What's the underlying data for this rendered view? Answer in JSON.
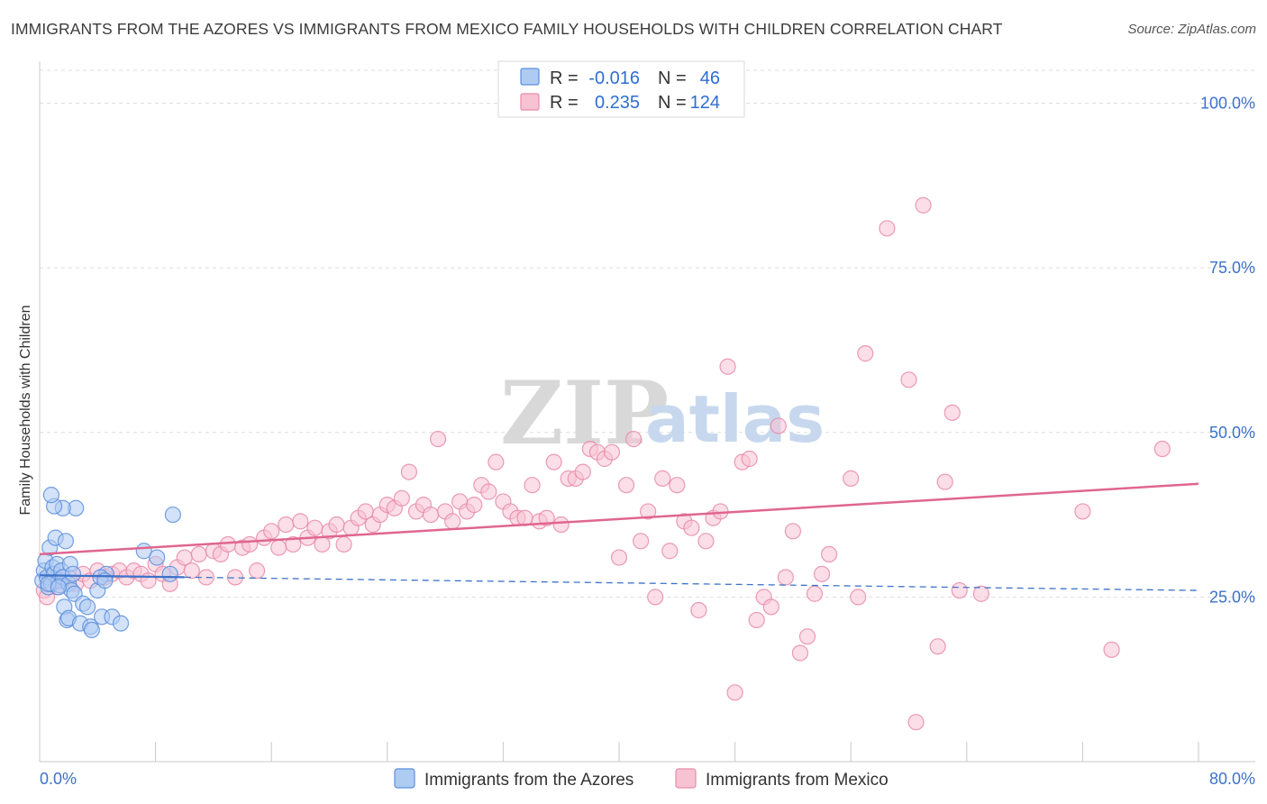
{
  "title": "IMMIGRANTS FROM THE AZORES VS IMMIGRANTS FROM MEXICO FAMILY HOUSEHOLDS WITH CHILDREN CORRELATION CHART",
  "source": "Source: ZipAtlas.com",
  "watermark": {
    "zip": "ZIP",
    "atlas": "atlas"
  },
  "colors": {
    "azores_fill": "#aecbf2",
    "azores_stroke": "#5b8fdc",
    "azores_line": "#3d72c9",
    "mexico_fill": "#f7c3d3",
    "mexico_stroke": "#e88aa9",
    "mexico_line": "#e0668f",
    "tick_label": "#3d72c9",
    "grid": "#dddddd"
  },
  "legend": {
    "rows": [
      {
        "r_label": "R =",
        "r_value": "-0.016",
        "n_label": "N =",
        "n_value": "46",
        "series": "azores"
      },
      {
        "r_label": "R =",
        "r_value": "0.235",
        "n_label": "N =",
        "n_value": "124",
        "series": "mexico"
      }
    ]
  },
  "chart_data": {
    "type": "scatter",
    "title": "IMMIGRANTS FROM THE AZORES VS IMMIGRANTS FROM MEXICO FAMILY HOUSEHOLDS WITH CHILDREN CORRELATION CHART",
    "xlabel": "",
    "ylabel": "Family Households with Children",
    "xlim": [
      0,
      80
    ],
    "ylim": [
      0,
      105
    ],
    "x_tick_labels": [
      {
        "value": 0,
        "label": "0.0%"
      },
      {
        "value": 80,
        "label": "80.0%"
      }
    ],
    "y_tick_labels": [
      {
        "value": 25,
        "label": "25.0%"
      },
      {
        "value": 50,
        "label": "50.0%"
      },
      {
        "value": 75,
        "label": "75.0%"
      },
      {
        "value": 100,
        "label": "100.0%"
      }
    ],
    "x_minor_ticks": [
      0,
      8,
      16,
      24,
      32,
      40,
      48,
      56,
      64,
      72,
      80
    ],
    "grid": true,
    "series": [
      {
        "name": "Immigrants from the Azores",
        "key": "azores",
        "trend": {
          "x0": 0,
          "y0": 28.3,
          "x1": 80,
          "y1": 26.0,
          "solid_until_x": 10
        },
        "points": [
          [
            0.2,
            27.5
          ],
          [
            0.3,
            29
          ],
          [
            0.4,
            30.5
          ],
          [
            0.5,
            28
          ],
          [
            0.6,
            26.5
          ],
          [
            0.7,
            32.5
          ],
          [
            0.8,
            27
          ],
          [
            0.9,
            29.5
          ],
          [
            1.0,
            28.5
          ],
          [
            1.1,
            34
          ],
          [
            1.2,
            30
          ],
          [
            1.3,
            27.5
          ],
          [
            1.4,
            26.8
          ],
          [
            1.5,
            29
          ],
          [
            1.6,
            28
          ],
          [
            1.7,
            23.5
          ],
          [
            1.8,
            33.5
          ],
          [
            1.9,
            21.5
          ],
          [
            2.0,
            27
          ],
          [
            2.1,
            30
          ],
          [
            2.2,
            26
          ],
          [
            2.3,
            28.5
          ],
          [
            2.4,
            25.5
          ],
          [
            2.5,
            38.5
          ],
          [
            1.6,
            38.5
          ],
          [
            1.0,
            38.8
          ],
          [
            0.8,
            40.5
          ],
          [
            2.0,
            21.8
          ],
          [
            2.8,
            21
          ],
          [
            3.0,
            24
          ],
          [
            3.3,
            23.5
          ],
          [
            3.5,
            20.5
          ],
          [
            3.6,
            20
          ],
          [
            4.0,
            26
          ],
          [
            4.3,
            22
          ],
          [
            4.6,
            28.5
          ],
          [
            5.0,
            22
          ],
          [
            5.6,
            21
          ],
          [
            4.2,
            28
          ],
          [
            4.5,
            27.5
          ],
          [
            7.2,
            32
          ],
          [
            8.1,
            31
          ],
          [
            9.0,
            28.5
          ],
          [
            9.2,
            37.5
          ],
          [
            0.6,
            27
          ],
          [
            1.3,
            26.5
          ]
        ]
      },
      {
        "name": "Immigrants from Mexico",
        "key": "mexico",
        "trend": {
          "x0": 0,
          "y0": 31.5,
          "x1": 80,
          "y1": 42.2
        },
        "points": [
          [
            0.3,
            26
          ],
          [
            0.5,
            25
          ],
          [
            0.8,
            28
          ],
          [
            1.2,
            26.5
          ],
          [
            1.5,
            27.5
          ],
          [
            2.0,
            28
          ],
          [
            2.5,
            27
          ],
          [
            3.0,
            28.5
          ],
          [
            3.5,
            27.5
          ],
          [
            4.0,
            29
          ],
          [
            4.5,
            28
          ],
          [
            5.0,
            28.5
          ],
          [
            5.5,
            29
          ],
          [
            6.0,
            28
          ],
          [
            6.5,
            29
          ],
          [
            7.0,
            28.5
          ],
          [
            7.5,
            27.5
          ],
          [
            8.0,
            30
          ],
          [
            8.5,
            28.5
          ],
          [
            9.0,
            27
          ],
          [
            9.5,
            29.5
          ],
          [
            10.0,
            31
          ],
          [
            10.5,
            29
          ],
          [
            11.0,
            31.5
          ],
          [
            11.5,
            28
          ],
          [
            12.0,
            32
          ],
          [
            12.5,
            31.5
          ],
          [
            13.0,
            33
          ],
          [
            13.5,
            28
          ],
          [
            14.0,
            32.5
          ],
          [
            14.5,
            33
          ],
          [
            15.0,
            29
          ],
          [
            15.5,
            34
          ],
          [
            16.0,
            35
          ],
          [
            16.5,
            32.5
          ],
          [
            17.0,
            36
          ],
          [
            17.5,
            33
          ],
          [
            18.0,
            36.5
          ],
          [
            18.5,
            34
          ],
          [
            19.0,
            35.5
          ],
          [
            19.5,
            33
          ],
          [
            20.0,
            35
          ],
          [
            20.5,
            36
          ],
          [
            21.0,
            33
          ],
          [
            21.5,
            35.5
          ],
          [
            22.0,
            37
          ],
          [
            22.5,
            38
          ],
          [
            23.0,
            36
          ],
          [
            23.5,
            37.5
          ],
          [
            24.0,
            39
          ],
          [
            24.5,
            38.5
          ],
          [
            25.0,
            40
          ],
          [
            25.5,
            44
          ],
          [
            26.0,
            38
          ],
          [
            26.5,
            39
          ],
          [
            27.0,
            37.5
          ],
          [
            27.5,
            49
          ],
          [
            28.0,
            38
          ],
          [
            28.5,
            36.5
          ],
          [
            29.0,
            39.5
          ],
          [
            29.5,
            38
          ],
          [
            30.0,
            39
          ],
          [
            30.5,
            42
          ],
          [
            31.0,
            41
          ],
          [
            31.5,
            45.5
          ],
          [
            32.0,
            39.5
          ],
          [
            32.5,
            38
          ],
          [
            33.0,
            37
          ],
          [
            33.5,
            37
          ],
          [
            34.0,
            42
          ],
          [
            34.5,
            36.5
          ],
          [
            35.0,
            37
          ],
          [
            35.5,
            45.5
          ],
          [
            36.0,
            36
          ],
          [
            36.5,
            43
          ],
          [
            37.0,
            43
          ],
          [
            37.5,
            44
          ],
          [
            38.0,
            47.5
          ],
          [
            38.5,
            47
          ],
          [
            39.0,
            46
          ],
          [
            39.5,
            47
          ],
          [
            40.0,
            31
          ],
          [
            40.5,
            42
          ],
          [
            41.0,
            49
          ],
          [
            41.5,
            33.5
          ],
          [
            42.0,
            38
          ],
          [
            42.5,
            25
          ],
          [
            43.0,
            43
          ],
          [
            43.5,
            32
          ],
          [
            44.0,
            42
          ],
          [
            44.5,
            36.5
          ],
          [
            45.0,
            35.5
          ],
          [
            45.5,
            23
          ],
          [
            46.0,
            33.5
          ],
          [
            46.5,
            37
          ],
          [
            47.0,
            38
          ],
          [
            47.5,
            60
          ],
          [
            48.0,
            10.5
          ],
          [
            48.5,
            45.5
          ],
          [
            49.0,
            46
          ],
          [
            49.5,
            21.5
          ],
          [
            50.0,
            25
          ],
          [
            50.5,
            23.5
          ],
          [
            51.0,
            51
          ],
          [
            51.5,
            28
          ],
          [
            52.0,
            35
          ],
          [
            52.5,
            16.5
          ],
          [
            53.0,
            19
          ],
          [
            53.5,
            25.5
          ],
          [
            54.0,
            28.5
          ],
          [
            54.5,
            31.5
          ],
          [
            56.0,
            43
          ],
          [
            56.5,
            25
          ],
          [
            57.0,
            62
          ],
          [
            58.5,
            81
          ],
          [
            60.0,
            58
          ],
          [
            60.5,
            6
          ],
          [
            61.0,
            84.5
          ],
          [
            62.0,
            17.5
          ],
          [
            62.5,
            42.5
          ],
          [
            63.0,
            53
          ],
          [
            63.5,
            26
          ],
          [
            65.0,
            25.5
          ],
          [
            72.0,
            38
          ],
          [
            74.0,
            17
          ],
          [
            77.5,
            47.5
          ]
        ]
      }
    ]
  },
  "bottom_legend": [
    {
      "label": "Immigrants from the Azores",
      "series": "azores"
    },
    {
      "label": "Immigrants from Mexico",
      "series": "mexico"
    }
  ]
}
